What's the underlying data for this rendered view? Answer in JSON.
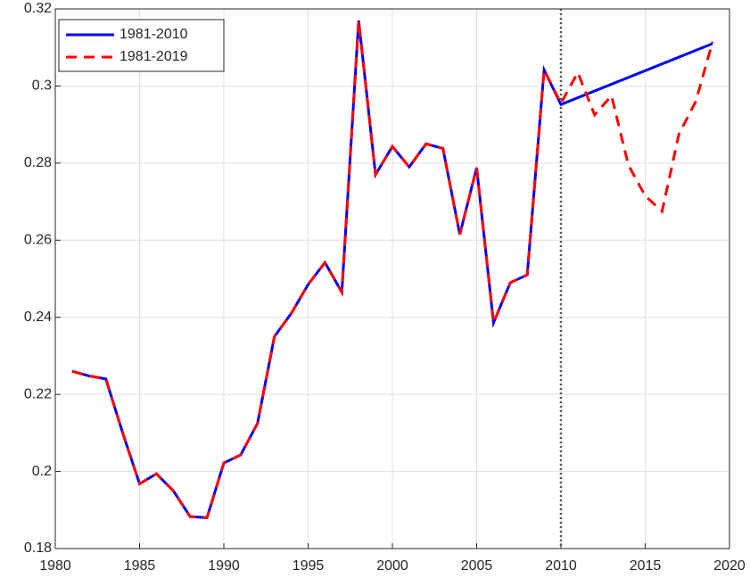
{
  "chart_data": {
    "type": "line",
    "xlim": [
      1980,
      2020
    ],
    "xticks": [
      1980,
      1985,
      1990,
      1995,
      2000,
      2005,
      2010,
      2015,
      2020
    ],
    "ylim": [
      0.18,
      0.32
    ],
    "yticks": [
      0.18,
      0.2,
      0.22,
      0.24,
      0.26,
      0.28,
      0.3,
      0.32
    ],
    "grid": true,
    "legend": "upper-left",
    "vline": 2010,
    "series": [
      {
        "name": "1981-2010",
        "color": "#0000ff",
        "dash": "solid",
        "x": [
          1981,
          1982,
          1983,
          1984,
          1985,
          1986,
          1987,
          1988,
          1989,
          1990,
          1991,
          1992,
          1993,
          1994,
          1995,
          1996,
          1997,
          1998,
          1999,
          2000,
          2001,
          2002,
          2003,
          2004,
          2005,
          2006,
          2007,
          2008,
          2009,
          2010,
          2019
        ],
        "values": [
          0.226,
          0.2248,
          0.224,
          0.21,
          0.1968,
          0.1994,
          0.195,
          0.1883,
          0.188,
          0.2022,
          0.2043,
          0.2125,
          0.235,
          0.241,
          0.2485,
          0.2542,
          0.2465,
          0.317,
          0.277,
          0.2843,
          0.279,
          0.285,
          0.2838,
          0.2615,
          0.2788,
          0.2386,
          0.249,
          0.251,
          0.3042,
          0.2952,
          0.311
        ]
      },
      {
        "name": "1981-2019",
        "color": "#ff0000",
        "dash": "dashed",
        "x": [
          1981,
          1982,
          1983,
          1984,
          1985,
          1986,
          1987,
          1988,
          1989,
          1990,
          1991,
          1992,
          1993,
          1994,
          1995,
          1996,
          1997,
          1998,
          1999,
          2000,
          2001,
          2002,
          2003,
          2004,
          2005,
          2006,
          2007,
          2008,
          2009,
          2010,
          2011,
          2012,
          2013,
          2014,
          2015,
          2016,
          2017,
          2018,
          2019
        ],
        "values": [
          0.226,
          0.2248,
          0.224,
          0.21,
          0.1968,
          0.1994,
          0.195,
          0.1883,
          0.188,
          0.2022,
          0.2043,
          0.2125,
          0.235,
          0.241,
          0.2485,
          0.2542,
          0.2465,
          0.317,
          0.277,
          0.2843,
          0.279,
          0.285,
          0.2838,
          0.2615,
          0.2788,
          0.2386,
          0.249,
          0.251,
          0.3042,
          0.2955,
          0.3035,
          0.2925,
          0.2975,
          0.2795,
          0.2715,
          0.2675,
          0.2875,
          0.296,
          0.3115
        ]
      }
    ]
  }
}
